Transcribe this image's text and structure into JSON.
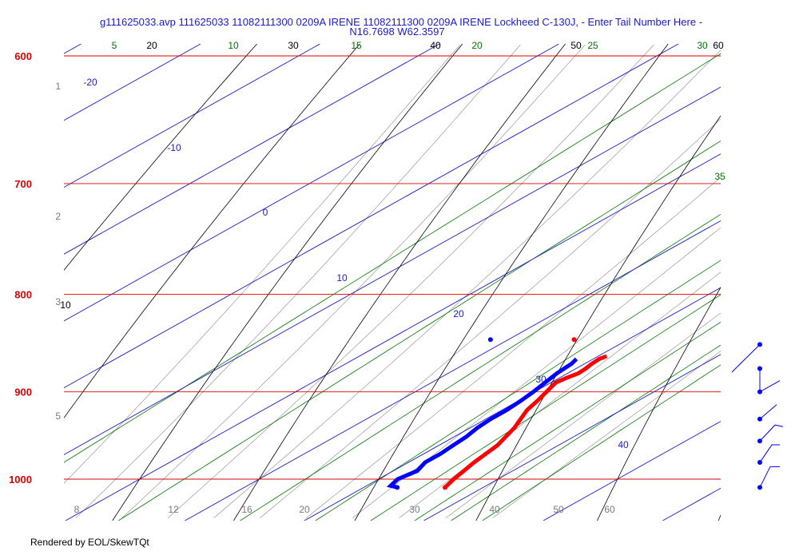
{
  "chart_data": {
    "type": "skew-t",
    "title_line1": "g111625033.avp 111625033 11082111300 0209A IRENE 11082111300 0209A IRENE Lockheed C-130J, - Enter Tail Number Here -",
    "title_line2": "N16.7698 W62.3597",
    "footer": "Rendered by EOL/SkewTQt",
    "colors": {
      "isobar": "#dd0000",
      "isotherm": "#1a1acc",
      "dry_adiabat": "#000000",
      "mixing_ratio": "#007700",
      "moist_adiabat": "#999999",
      "temperature": "#ff0000",
      "dewpoint": "#0000ff",
      "title": "#1a1acc"
    },
    "pressure_labels": [
      "600",
      "700",
      "800",
      "900",
      "1000"
    ],
    "height_labels": [
      "1",
      "2",
      "3",
      "5"
    ],
    "dry_adiabat_labels": [
      "20",
      "30",
      "40",
      "50",
      "60",
      "10"
    ],
    "mixing_ratio_labels": [
      "5",
      "10",
      "15",
      "20",
      "25",
      "30",
      "35"
    ],
    "isotherm_labels": [
      "-20",
      "-10",
      "0",
      "10",
      "20",
      "30",
      "40"
    ],
    "bottom_labels": [
      "8",
      "12",
      "16",
      "20",
      "30",
      "40",
      "50",
      "60"
    ],
    "temperature_profile": [
      {
        "p": 1010,
        "t": 26.8
      },
      {
        "p": 1000,
        "t": 26.3
      },
      {
        "p": 990,
        "t": 25.9
      },
      {
        "p": 980,
        "t": 25.5
      },
      {
        "p": 970,
        "t": 25.2
      },
      {
        "p": 960,
        "t": 24.9
      },
      {
        "p": 950,
        "t": 24.3
      },
      {
        "p": 940,
        "t": 23.7
      },
      {
        "p": 930,
        "t": 22.9
      },
      {
        "p": 920,
        "t": 22.1
      },
      {
        "p": 910,
        "t": 21.6
      },
      {
        "p": 900,
        "t": 21.0
      },
      {
        "p": 890,
        "t": 20.4
      },
      {
        "p": 885,
        "t": 20.6
      },
      {
        "p": 880,
        "t": 20.9
      },
      {
        "p": 875,
        "t": 20.8
      },
      {
        "p": 870,
        "t": 20.6
      },
      {
        "p": 865,
        "t": 20.5
      },
      {
        "p": 862,
        "t": 20.7
      }
    ],
    "dewpoint_profile": [
      {
        "p": 1010,
        "t": 22.8
      },
      {
        "p": 1008,
        "t": 22.0
      },
      {
        "p": 1000,
        "t": 21.6
      },
      {
        "p": 990,
        "t": 22.0
      },
      {
        "p": 980,
        "t": 21.4
      },
      {
        "p": 970,
        "t": 21.4
      },
      {
        "p": 960,
        "t": 21.2
      },
      {
        "p": 950,
        "t": 21.0
      },
      {
        "p": 940,
        "t": 20.6
      },
      {
        "p": 930,
        "t": 20.4
      },
      {
        "p": 920,
        "t": 20.4
      },
      {
        "p": 910,
        "t": 20.2
      },
      {
        "p": 900,
        "t": 19.9
      },
      {
        "p": 890,
        "t": 19.5
      },
      {
        "p": 880,
        "t": 19.1
      },
      {
        "p": 870,
        "t": 18.9
      },
      {
        "p": 865,
        "t": 18.6
      }
    ],
    "extra_points": [
      {
        "series": "temperature",
        "p": 845,
        "t": 15.5
      },
      {
        "series": "dewpoint",
        "p": 845,
        "t": 8.5
      }
    ],
    "wind_barbs": [
      {
        "p": 850
      },
      {
        "p": 875
      },
      {
        "p": 900
      },
      {
        "p": 930
      },
      {
        "p": 955
      },
      {
        "p": 980
      },
      {
        "p": 1010
      }
    ],
    "axes": {
      "p_top": 600,
      "p_bottom": 1000,
      "t_range_at_1000": [
        -5,
        50
      ],
      "log_pressure": true,
      "grid": true
    }
  }
}
